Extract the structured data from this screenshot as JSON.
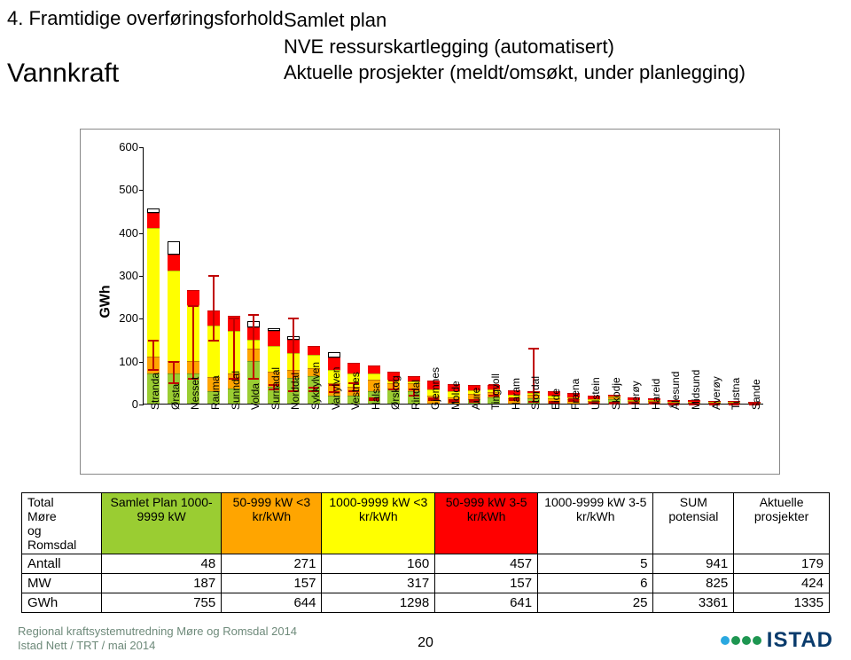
{
  "header": {
    "left_line1": "4. Framtidige overføringsforhold",
    "left_line2": "Vannkraft",
    "right_line1": "Samlet plan",
    "right_line2": "NVE ressurskartlegging (automatisert)",
    "right_line3": "Aktuelle prosjekter (meldt/omsøkt, under planlegging)"
  },
  "chart": {
    "ylabel": "GWh",
    "ymax": 600,
    "ymin": 0,
    "ytick_step": 100,
    "categories": [
      "Stranda",
      "Ørsta",
      "Nesset",
      "Rauma",
      "Sunndal",
      "Volda",
      "Surnadal",
      "Norddal",
      "Sykkylven",
      "Vanylven",
      "Vestnes",
      "Halsa",
      "Ørskog",
      "Rindal",
      "Gjemnes",
      "Molde",
      "Aure",
      "Tingvoll",
      "Haram",
      "Stordal",
      "Eide",
      "Fræna",
      "Ulstein",
      "Skodje",
      "Herøy",
      "Hareid",
      "Ålesund",
      "Midsund",
      "Averøy",
      "Tustna",
      "Sande"
    ],
    "series_colors": {
      "samlet": "#9acd32",
      "s50_3": "#ffa500",
      "s1000_3": "#ffff00",
      "s50_5": "#ff0000",
      "s1000_5": "#ffffff"
    },
    "data": [
      {
        "samlet": 70,
        "s50_3": 40,
        "s1000_3": 300,
        "s50_5": 35,
        "s1000_5": 10,
        "akt": 150,
        "aktlow": 80
      },
      {
        "samlet": 70,
        "s50_3": 30,
        "s1000_3": 210,
        "s50_5": 38,
        "s1000_5": 30,
        "akt": 100,
        "aktlow": 50
      },
      {
        "samlet": 70,
        "s50_3": 30,
        "s1000_3": 130,
        "s50_5": 35,
        "s1000_5": 0,
        "akt": 230,
        "aktlow": 60
      },
      {
        "samlet": 28,
        "s50_3": 35,
        "s1000_3": 120,
        "s50_5": 35,
        "s1000_5": 0,
        "akt": 300,
        "aktlow": 150
      },
      {
        "samlet": 35,
        "s50_3": 35,
        "s1000_3": 100,
        "s50_5": 35,
        "s1000_5": 0,
        "akt": 200,
        "aktlow": 60
      },
      {
        "samlet": 100,
        "s50_3": 28,
        "s1000_3": 20,
        "s50_5": 30,
        "s1000_5": 15,
        "akt": 210,
        "aktlow": 60
      },
      {
        "samlet": 40,
        "s50_3": 35,
        "s1000_3": 60,
        "s50_5": 35,
        "s1000_5": 6,
        "akt": 45,
        "aktlow": 35
      },
      {
        "samlet": 60,
        "s50_3": 18,
        "s1000_3": 40,
        "s50_5": 30,
        "s1000_5": 10,
        "akt": 200,
        "aktlow": 30
      },
      {
        "samlet": 65,
        "s50_3": 18,
        "s1000_3": 30,
        "s50_5": 22,
        "s1000_5": 0,
        "akt": 40,
        "aktlow": 30
      },
      {
        "samlet": 18,
        "s50_3": 30,
        "s1000_3": 30,
        "s50_5": 30,
        "s1000_5": 12,
        "akt": 45,
        "aktlow": 30
      },
      {
        "samlet": 18,
        "s50_3": 22,
        "s1000_3": 30,
        "s50_5": 25,
        "s1000_5": 0,
        "akt": 50,
        "aktlow": 30
      },
      {
        "samlet": 30,
        "s50_3": 25,
        "s1000_3": 15,
        "s50_5": 20,
        "s1000_5": 0,
        "akt": 15,
        "aktlow": 10
      },
      {
        "samlet": 35,
        "s50_3": 12,
        "s1000_3": 8,
        "s50_5": 20,
        "s1000_5": 0,
        "akt": 55,
        "aktlow": 35
      },
      {
        "samlet": 30,
        "s50_3": 18,
        "s1000_3": 4,
        "s50_5": 12,
        "s1000_5": 0,
        "akt": 35,
        "aktlow": 20
      },
      {
        "samlet": 0,
        "s50_3": 18,
        "s1000_3": 15,
        "s50_5": 20,
        "s1000_5": 0,
        "akt": 15,
        "aktlow": 10
      },
      {
        "samlet": 0,
        "s50_3": 15,
        "s1000_3": 15,
        "s50_5": 15,
        "s1000_5": 0,
        "akt": 10,
        "aktlow": 6
      },
      {
        "samlet": 10,
        "s50_3": 12,
        "s1000_3": 10,
        "s50_5": 12,
        "s1000_5": 0,
        "akt": 10,
        "aktlow": 6
      },
      {
        "samlet": 15,
        "s50_3": 12,
        "s1000_3": 6,
        "s50_5": 10,
        "s1000_5": 0,
        "akt": 45,
        "aktlow": 20
      },
      {
        "samlet": 0,
        "s50_3": 12,
        "s1000_3": 8,
        "s50_5": 12,
        "s1000_5": 0,
        "akt": 15,
        "aktlow": 10
      },
      {
        "samlet": 12,
        "s50_3": 8,
        "s1000_3": 4,
        "s50_5": 6,
        "s1000_5": 0,
        "akt": 130,
        "aktlow": 6
      },
      {
        "samlet": 0,
        "s50_3": 12,
        "s1000_3": 6,
        "s50_5": 10,
        "s1000_5": 0,
        "akt": 6,
        "aktlow": 4
      },
      {
        "samlet": 0,
        "s50_3": 10,
        "s1000_3": 4,
        "s50_5": 10,
        "s1000_5": 0,
        "akt": 12,
        "aktlow": 8
      },
      {
        "samlet": 0,
        "s50_3": 6,
        "s1000_3": 4,
        "s50_5": 8,
        "s1000_5": 0,
        "akt": 4,
        "aktlow": 2
      },
      {
        "samlet": 10,
        "s50_3": 4,
        "s1000_3": 2,
        "s50_5": 4,
        "s1000_5": 0,
        "akt": 4,
        "aktlow": 2
      },
      {
        "samlet": 0,
        "s50_3": 6,
        "s1000_3": 2,
        "s50_5": 6,
        "s1000_5": 0,
        "akt": 4,
        "aktlow": 2
      },
      {
        "samlet": 0,
        "s50_3": 6,
        "s1000_3": 2,
        "s50_5": 4,
        "s1000_5": 0,
        "akt": 4,
        "aktlow": 2
      },
      {
        "samlet": 0,
        "s50_3": 3,
        "s1000_3": 2,
        "s50_5": 4,
        "s1000_5": 0,
        "akt": 3,
        "aktlow": 1
      },
      {
        "samlet": 0,
        "s50_3": 3,
        "s1000_3": 1,
        "s50_5": 3,
        "s1000_5": 0,
        "akt": 3,
        "aktlow": 1
      },
      {
        "samlet": 0,
        "s50_3": 2,
        "s1000_3": 1,
        "s50_5": 3,
        "s1000_5": 0,
        "akt": 2,
        "aktlow": 1
      },
      {
        "samlet": 0,
        "s50_3": 2,
        "s1000_3": 1,
        "s50_5": 2,
        "s1000_5": 0,
        "akt": 2,
        "aktlow": 1
      },
      {
        "samlet": 0,
        "s50_3": 2,
        "s1000_3": 0,
        "s50_5": 2,
        "s1000_5": 0,
        "akt": 2,
        "aktlow": 1
      }
    ]
  },
  "table": {
    "row_label": "Total Møre og Romsdal",
    "headers": [
      {
        "text": "Samlet Plan 1000-9999 kW",
        "bg": "#9acd32"
      },
      {
        "text": "50-999 kW <3 kr/kWh",
        "bg": "#ffa500"
      },
      {
        "text": "1000-9999 kW <3 kr/kWh",
        "bg": "#ffff00"
      },
      {
        "text": "50-999 kW 3-5 kr/kWh",
        "bg": "#ff0000"
      },
      {
        "text": "1000-9999 kW 3-5 kr/kWh",
        "bg": "#ffffff"
      },
      {
        "text": "SUM potensial",
        "bg": "#ffffff"
      },
      {
        "text": "Aktuelle prosjekter",
        "bg": "#ffffff"
      }
    ],
    "rows": [
      {
        "label": "Antall",
        "cells": [
          48,
          271,
          160,
          457,
          5,
          941,
          179
        ]
      },
      {
        "label": "MW",
        "cells": [
          187,
          157,
          317,
          157,
          6,
          825,
          424
        ]
      },
      {
        "label": "GWh",
        "cells": [
          755,
          644,
          1298,
          641,
          25,
          3361,
          1335
        ]
      }
    ]
  },
  "footer": {
    "line1": "Regional kraftsystemutredning Møre og Romsdal 2014",
    "line2": "Istad Nett /  TRT  / mai 2014",
    "page": "20",
    "logo_text": "ISTAD",
    "logo_colors": [
      "#2aa8e0",
      "#1e9651",
      "#1e9651",
      "#1e9651"
    ],
    "logo_text_color": "#0a3b6c"
  }
}
